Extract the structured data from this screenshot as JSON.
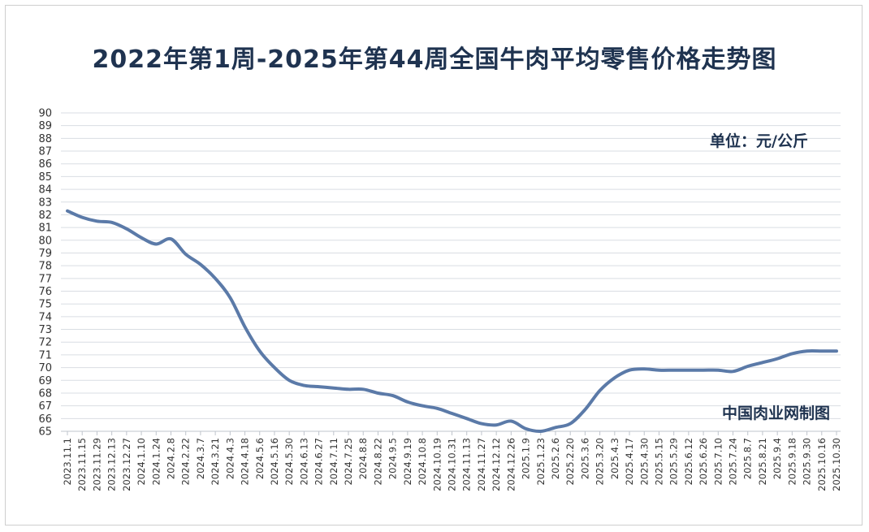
{
  "chart_data": {
    "type": "line",
    "title": "2022年第1周-2025年第44周全国牛肉平均零售价格走势图",
    "unit_note": "单位：元/公斤",
    "source_note": "中国肉业网制图",
    "ylim": [
      65,
      90
    ],
    "grid": true,
    "legend": "none",
    "line_color": "#5b7aa8",
    "x_tick_labels": [
      "2023.11.1",
      "2023.11.15",
      "2023.11.29",
      "2023.12.13",
      "2023.12.27",
      "2024.1.10",
      "2024.1.24",
      "2024.2.8",
      "2024.2.22",
      "2024.3.7",
      "2024.3.21",
      "2024.4.3",
      "2024.4.18",
      "2024.5.6",
      "2024.5.16",
      "2024.5.30",
      "2024.6.13",
      "2024.6.27",
      "2024.7.11",
      "2024.7.25",
      "2024.8.8",
      "2024.8.22",
      "2024.9.5",
      "2024.9.19",
      "2024.10.8",
      "2024.10.19",
      "2024.10.31",
      "2024.11.13",
      "2024.11.27",
      "2024.12.12",
      "2024.12.26",
      "2025.1.9",
      "2025.1.23",
      "2025.2.6",
      "2025.2.20",
      "2025.3.6",
      "2025.3.20",
      "2025.4.3",
      "2025.4.17",
      "2025.4.30",
      "2025.5.15",
      "2025.5.29",
      "2025.6.12",
      "2025.6.26",
      "2025.7.10",
      "2025.7.24",
      "2025.8.7",
      "2025.8.21",
      "2025.9.4",
      "2025.9.18",
      "2025.9.30",
      "2025.10.16",
      "2025.10.30"
    ],
    "series": [
      {
        "values": [
          82.3,
          81.8,
          81.5,
          81.4,
          80.9,
          80.2,
          79.7,
          80.1,
          78.9,
          78.1,
          77.0,
          75.5,
          73.2,
          71.3,
          70.0,
          69.0,
          68.6,
          68.5,
          68.4,
          68.3,
          68.3,
          68.0,
          67.8,
          67.3,
          67.0,
          66.8,
          66.4,
          66.0,
          65.6,
          65.5,
          65.8,
          65.2,
          65.0,
          65.3,
          65.6,
          66.7,
          68.2,
          69.2,
          69.8,
          69.9,
          69.8,
          69.8,
          69.8,
          69.8,
          69.8,
          69.7,
          70.1,
          70.4,
          70.7,
          71.1,
          71.3,
          71.3,
          71.3
        ]
      }
    ]
  }
}
